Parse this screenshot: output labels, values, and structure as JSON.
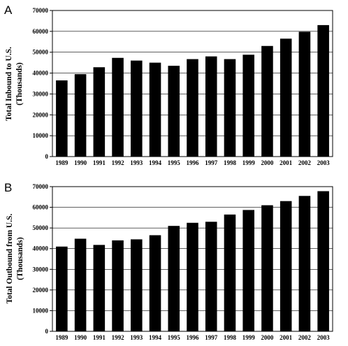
{
  "chart_data": [
    {
      "type": "bar",
      "panel_label": "A",
      "title": "",
      "xlabel": "",
      "ylabel_line1": "Total Inbound to U.S.",
      "ylabel_line2": "(Thousands)",
      "categories": [
        "1989",
        "1990",
        "1991",
        "1992",
        "1993",
        "1994",
        "1995",
        "1996",
        "1997",
        "1998",
        "1999",
        "2000",
        "2001",
        "2002",
        "2003"
      ],
      "values": [
        36500,
        39500,
        42800,
        47300,
        46000,
        45000,
        43500,
        46700,
        48000,
        46700,
        48800,
        53000,
        56500,
        59800,
        63000
      ],
      "ylim": [
        0,
        70000
      ],
      "yticks": [
        "0",
        "10000",
        "20000",
        "30000",
        "40000",
        "50000",
        "60000",
        "70000"
      ],
      "grid": true
    },
    {
      "type": "bar",
      "panel_label": "B",
      "title": "",
      "xlabel": "",
      "ylabel_line1": "Total Outbound from U.S.",
      "ylabel_line2": "(Thousands)",
      "categories": [
        "1989",
        "1990",
        "1991",
        "1992",
        "1993",
        "1994",
        "1995",
        "1996",
        "1997",
        "1998",
        "1999",
        "2000",
        "2001",
        "2002",
        "2003"
      ],
      "values": [
        41000,
        44800,
        41800,
        44000,
        44500,
        46500,
        51000,
        52500,
        53000,
        56500,
        58700,
        61000,
        63000,
        65500,
        67800
      ],
      "ylim": [
        0,
        70000
      ],
      "yticks": [
        "0",
        "10000",
        "20000",
        "30000",
        "40000",
        "50000",
        "60000",
        "70000"
      ],
      "grid": true
    }
  ]
}
